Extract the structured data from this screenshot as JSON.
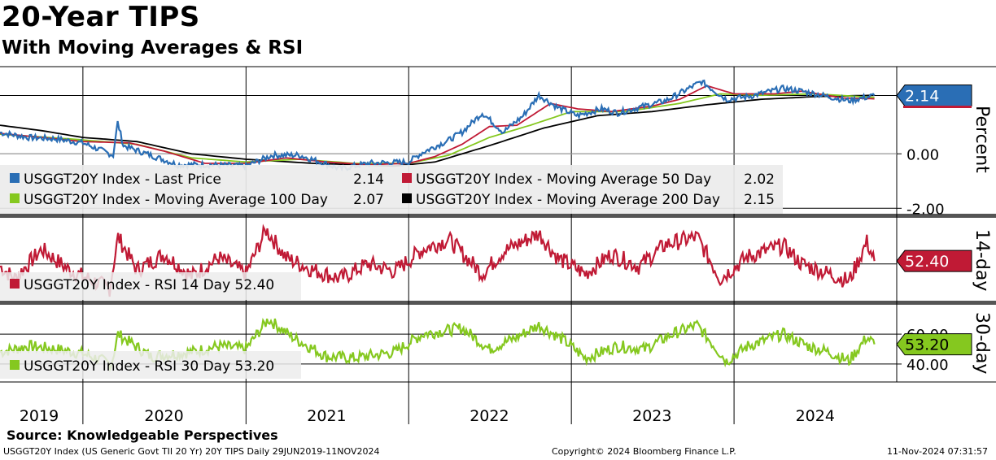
{
  "title": "20-Year TIPS",
  "subtitle": "With Moving Averages & RSI",
  "source": "Source: Knowledgeable Perspectives",
  "footer": {
    "left": "USGGT20Y Index (US Generic Govt TII 20 Yr) 20Y TIPS  Daily 29JUN2019-11NOV2024",
    "center": "Copyright© 2024 Bloomberg Finance L.P.",
    "right": "11-Nov-2024 07:31:57"
  },
  "chart_data": [
    {
      "type": "line",
      "panel": "price",
      "ylabel": "Percent",
      "y_ticks": [
        "0.00",
        "-2.00"
      ],
      "ylim": [
        -2.2,
        3.2
      ],
      "x_years": [
        "2019",
        "2020",
        "2021",
        "2022",
        "2023",
        "2024"
      ],
      "x_range": [
        "2019-06-29",
        "2024-11-11"
      ],
      "grid": true,
      "legend_position": "bottom-left",
      "series": [
        {
          "name": "USGGT20Y Index - Last Price",
          "legend_value": "2.14",
          "color": "#2a6eb5",
          "points": [
            [
              "2019-06-29",
              0.78
            ],
            [
              "2019-09-01",
              0.6
            ],
            [
              "2019-11-01",
              0.55
            ],
            [
              "2020-01-01",
              0.4
            ],
            [
              "2020-03-09",
              -0.05
            ],
            [
              "2020-03-19",
              1.15
            ],
            [
              "2020-04-01",
              0.3
            ],
            [
              "2020-06-01",
              -0.05
            ],
            [
              "2020-08-01",
              -0.4
            ],
            [
              "2020-10-01",
              -0.4
            ],
            [
              "2021-01-01",
              -0.45
            ],
            [
              "2021-03-01",
              -0.05
            ],
            [
              "2021-05-01",
              -0.05
            ],
            [
              "2021-08-01",
              -0.55
            ],
            [
              "2021-10-01",
              -0.35
            ],
            [
              "2022-01-01",
              -0.3
            ],
            [
              "2022-02-01",
              0.05
            ],
            [
              "2022-04-01",
              0.5
            ],
            [
              "2022-05-01",
              0.8
            ],
            [
              "2022-06-15",
              1.5
            ],
            [
              "2022-08-01",
              0.8
            ],
            [
              "2022-09-15",
              1.4
            ],
            [
              "2022-10-20",
              2.15
            ],
            [
              "2022-12-01",
              1.7
            ],
            [
              "2023-01-15",
              1.4
            ],
            [
              "2023-03-10",
              1.65
            ],
            [
              "2023-04-15",
              1.5
            ],
            [
              "2023-06-01",
              1.7
            ],
            [
              "2023-08-01",
              1.95
            ],
            [
              "2023-10-20",
              2.65
            ],
            [
              "2023-12-15",
              2.0
            ],
            [
              "2024-02-01",
              2.1
            ],
            [
              "2024-04-20",
              2.4
            ],
            [
              "2024-06-01",
              2.3
            ],
            [
              "2024-08-15",
              2.05
            ],
            [
              "2024-09-15",
              1.95
            ],
            [
              "2024-11-11",
              2.14
            ]
          ]
        },
        {
          "name": "USGGT20Y Index - Moving Average 50 Day",
          "legend_value": "2.02",
          "color": "#c01a35",
          "points": [
            [
              "2019-06-29",
              0.75
            ],
            [
              "2019-10-01",
              0.6
            ],
            [
              "2020-01-01",
              0.45
            ],
            [
              "2020-04-15",
              0.4
            ],
            [
              "2020-07-01",
              0.1
            ],
            [
              "2020-10-01",
              -0.35
            ],
            [
              "2021-01-01",
              -0.35
            ],
            [
              "2021-04-01",
              -0.15
            ],
            [
              "2021-07-01",
              -0.3
            ],
            [
              "2021-10-01",
              -0.4
            ],
            [
              "2022-01-01",
              -0.35
            ],
            [
              "2022-03-01",
              -0.1
            ],
            [
              "2022-05-01",
              0.35
            ],
            [
              "2022-07-01",
              1.0
            ],
            [
              "2022-09-01",
              1.05
            ],
            [
              "2022-11-15",
              1.85
            ],
            [
              "2023-01-15",
              1.65
            ],
            [
              "2023-04-01",
              1.55
            ],
            [
              "2023-07-01",
              1.75
            ],
            [
              "2023-09-01",
              2.0
            ],
            [
              "2023-11-01",
              2.5
            ],
            [
              "2024-01-01",
              2.2
            ],
            [
              "2024-04-01",
              2.2
            ],
            [
              "2024-06-01",
              2.3
            ],
            [
              "2024-09-01",
              2.05
            ],
            [
              "2024-11-11",
              2.02
            ]
          ]
        },
        {
          "name": "USGGT20Y Index - Moving Average 100 Day",
          "legend_value": "2.07",
          "color": "#85c81f",
          "points": [
            [
              "2019-06-29",
              0.72
            ],
            [
              "2019-12-01",
              0.55
            ],
            [
              "2020-05-01",
              0.35
            ],
            [
              "2020-09-01",
              -0.15
            ],
            [
              "2021-01-01",
              -0.3
            ],
            [
              "2021-05-01",
              -0.2
            ],
            [
              "2021-09-01",
              -0.35
            ],
            [
              "2022-01-01",
              -0.35
            ],
            [
              "2022-04-01",
              -0.05
            ],
            [
              "2022-07-01",
              0.6
            ],
            [
              "2022-10-01",
              1.05
            ],
            [
              "2023-01-01",
              1.55
            ],
            [
              "2023-05-01",
              1.55
            ],
            [
              "2023-09-01",
              1.85
            ],
            [
              "2023-12-01",
              2.2
            ],
            [
              "2024-03-01",
              2.15
            ],
            [
              "2024-07-01",
              2.2
            ],
            [
              "2024-11-11",
              2.07
            ]
          ]
        },
        {
          "name": "USGGT20Y Index - Moving Average 200 Day",
          "legend_value": "2.15",
          "color": "#000000",
          "points": [
            [
              "2019-06-29",
              1.05
            ],
            [
              "2019-10-01",
              0.85
            ],
            [
              "2020-01-01",
              0.6
            ],
            [
              "2020-05-01",
              0.45
            ],
            [
              "2020-09-01",
              0.0
            ],
            [
              "2021-01-01",
              -0.2
            ],
            [
              "2021-06-01",
              -0.35
            ],
            [
              "2021-12-01",
              -0.45
            ],
            [
              "2022-03-01",
              -0.3
            ],
            [
              "2022-07-01",
              0.3
            ],
            [
              "2022-11-01",
              0.95
            ],
            [
              "2023-03-01",
              1.4
            ],
            [
              "2023-07-01",
              1.55
            ],
            [
              "2023-11-01",
              1.8
            ],
            [
              "2024-03-01",
              2.0
            ],
            [
              "2024-07-01",
              2.1
            ],
            [
              "2024-11-11",
              2.15
            ]
          ]
        }
      ],
      "current_value_label": {
        "value": "2.14",
        "color": "#2a6eb5"
      }
    },
    {
      "type": "line",
      "panel": "rsi14",
      "ylabel": "14-day",
      "ylim": [
        20,
        85
      ],
      "reference_line": 50,
      "series": [
        {
          "name": "USGGT20Y Index - RSI 14 Day",
          "legend_value": "52.40",
          "color": "#c01a35",
          "points": [
            [
              "2019-06-29",
              48
            ],
            [
              "2019-08-01",
              38
            ],
            [
              "2019-10-01",
              62
            ],
            [
              "2019-12-01",
              45
            ],
            [
              "2020-03-01",
              30
            ],
            [
              "2020-03-20",
              72
            ],
            [
              "2020-05-01",
              45
            ],
            [
              "2020-07-01",
              58
            ],
            [
              "2020-09-01",
              40
            ],
            [
              "2020-11-01",
              55
            ],
            [
              "2021-01-01",
              42
            ],
            [
              "2021-02-15",
              78
            ],
            [
              "2021-04-01",
              55
            ],
            [
              "2021-06-01",
              45
            ],
            [
              "2021-08-01",
              38
            ],
            [
              "2021-10-01",
              50
            ],
            [
              "2021-12-01",
              44
            ],
            [
              "2022-02-01",
              62
            ],
            [
              "2022-04-01",
              70
            ],
            [
              "2022-06-15",
              42
            ],
            [
              "2022-08-01",
              60
            ],
            [
              "2022-10-20",
              75
            ],
            [
              "2022-12-01",
              55
            ],
            [
              "2023-02-01",
              42
            ],
            [
              "2023-04-01",
              58
            ],
            [
              "2023-06-01",
              48
            ],
            [
              "2023-08-01",
              66
            ],
            [
              "2023-10-10",
              72
            ],
            [
              "2023-12-01",
              38
            ],
            [
              "2024-02-01",
              56
            ],
            [
              "2024-04-20",
              65
            ],
            [
              "2024-06-01",
              50
            ],
            [
              "2024-08-01",
              42
            ],
            [
              "2024-09-15",
              36
            ],
            [
              "2024-10-25",
              68
            ],
            [
              "2024-11-11",
              52.4
            ]
          ]
        }
      ],
      "current_value_label": {
        "value": "52.40",
        "color": "#c01a35"
      }
    },
    {
      "type": "line",
      "panel": "rsi30",
      "ylabel": "30-day",
      "y_ticks": [
        "60.00",
        "40.00"
      ],
      "ylim": [
        28,
        78
      ],
      "reference_lines": [
        60,
        40
      ],
      "series": [
        {
          "name": "USGGT20Y Index - RSI 30 Day",
          "legend_value": "53.20",
          "color": "#85c81f",
          "points": [
            [
              "2019-06-29",
              48
            ],
            [
              "2019-09-01",
              52
            ],
            [
              "2019-11-01",
              50
            ],
            [
              "2020-01-01",
              47
            ],
            [
              "2020-03-05",
              40
            ],
            [
              "2020-03-20",
              60
            ],
            [
              "2020-06-01",
              45
            ],
            [
              "2020-09-01",
              48
            ],
            [
              "2020-11-01",
              52
            ],
            [
              "2021-01-01",
              50
            ],
            [
              "2021-02-20",
              70
            ],
            [
              "2021-04-15",
              58
            ],
            [
              "2021-07-01",
              45
            ],
            [
              "2021-09-01",
              44
            ],
            [
              "2021-12-01",
              48
            ],
            [
              "2022-02-01",
              60
            ],
            [
              "2022-05-01",
              64
            ],
            [
              "2022-07-01",
              50
            ],
            [
              "2022-09-01",
              58
            ],
            [
              "2022-10-20",
              66
            ],
            [
              "2022-12-15",
              56
            ],
            [
              "2023-02-01",
              44
            ],
            [
              "2023-04-15",
              52
            ],
            [
              "2023-06-15",
              50
            ],
            [
              "2023-08-15",
              60
            ],
            [
              "2023-10-10",
              66
            ],
            [
              "2023-12-15",
              42
            ],
            [
              "2024-02-01",
              52
            ],
            [
              "2024-04-20",
              60
            ],
            [
              "2024-06-15",
              52
            ],
            [
              "2024-08-01",
              48
            ],
            [
              "2024-09-15",
              42
            ],
            [
              "2024-10-25",
              58
            ],
            [
              "2024-11-11",
              53.2
            ]
          ]
        }
      ],
      "current_value_label": {
        "value": "53.20",
        "color": "#85c81f"
      }
    }
  ]
}
